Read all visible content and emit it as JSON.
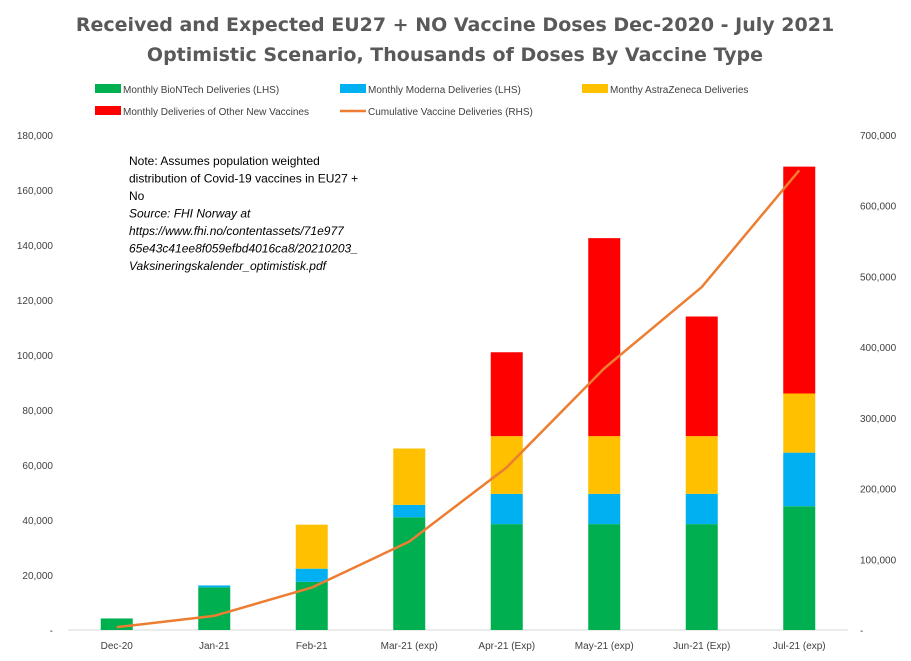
{
  "chart_data": {
    "type": "bar",
    "stacked": true,
    "title": "Received and Expected EU27 + NO Vaccine Doses Dec-2020 - July 2021",
    "subtitle": "Optimistic Scenario, Thousands of Doses By Vaccine Type",
    "categories": [
      "Dec-20",
      "Jan-21",
      "Feb-21",
      "Mar-21 (exp)",
      "Apr-21 (Exp)",
      "May-21 (exp)",
      "Jun-21 (Exp)",
      "Jul-21 (exp)"
    ],
    "series": [
      {
        "name": "Monthly BioNTech Deliveries (LHS)",
        "color": "#00b050",
        "axis": "left",
        "values": [
          4200,
          15500,
          17500,
          41000,
          38500,
          38500,
          38500,
          45000
        ]
      },
      {
        "name": "Monthly Moderna Deliveries (LHS)",
        "color": "#00b0f0",
        "axis": "left",
        "values": [
          0,
          700,
          4800,
          4500,
          11000,
          11000,
          11000,
          19500
        ]
      },
      {
        "name": "Monthy AstraZeneca Deliveries",
        "color": "#ffc000",
        "axis": "left",
        "values": [
          0,
          0,
          16000,
          20500,
          21000,
          21000,
          21000,
          21500
        ]
      },
      {
        "name": "Monthly Deliveries of Other New Vaccines",
        "color": "#ff0000",
        "axis": "left",
        "values": [
          0,
          0,
          0,
          0,
          30500,
          72000,
          43500,
          82500
        ]
      },
      {
        "name": "Cumulative Vaccine Deliveries (RHS)",
        "color": "#ed7d31",
        "axis": "right",
        "type": "line",
        "values": [
          4000,
          20000,
          60000,
          125000,
          230000,
          370000,
          485000,
          650000
        ]
      }
    ],
    "y_left": {
      "min": 0,
      "max": 180000,
      "ticks": [
        "-",
        "20,000",
        "40,000",
        "60,000",
        "80,000",
        "100,000",
        "120,000",
        "140,000",
        "160,000",
        "180,000"
      ]
    },
    "y_right": {
      "min": 0,
      "max": 700000,
      "ticks": [
        "-",
        "100,000",
        "200,000",
        "300,000",
        "400,000",
        "500,000",
        "600,000",
        "700,000"
      ]
    },
    "legend_position": "top",
    "grid": false,
    "note": [
      {
        "text": "Note: Assumes population weighted",
        "italic": false
      },
      {
        "text": "distribution of Covid-19 vaccines in EU27 +",
        "italic": false
      },
      {
        "text": "No",
        "italic": false
      },
      {
        "text": "Source: FHI Norway at",
        "italic": true
      },
      {
        "text": "https://www.fhi.no/contentassets/71e977",
        "italic": true
      },
      {
        "text": "65e43c41ee8f059efbd4016ca8/20210203_",
        "italic": true
      },
      {
        "text": "Vaksineringskalender_optimistisk.pdf",
        "italic": true
      }
    ]
  }
}
